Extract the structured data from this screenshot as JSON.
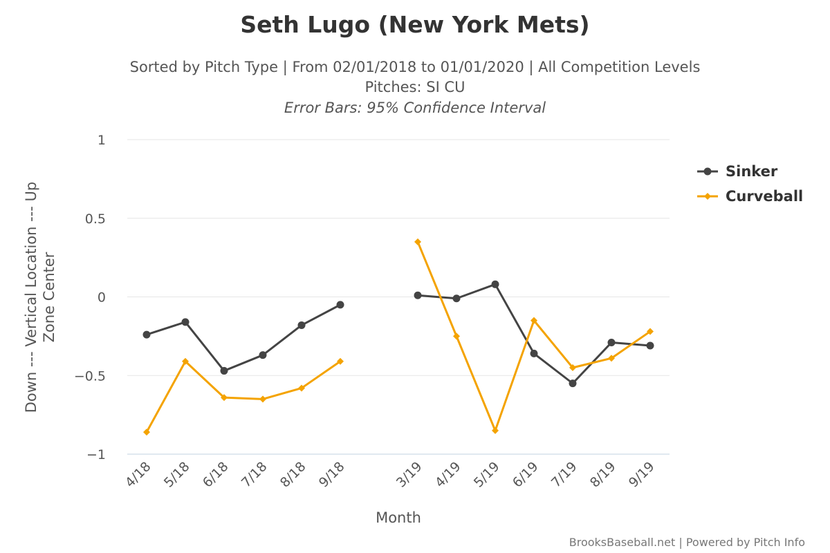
{
  "chart_data": {
    "type": "line",
    "title": "Seth Lugo (New York Mets)",
    "subtitle": "Sorted by Pitch Type | From 02/01/2018 to 01/01/2020 | All Competition Levels",
    "subtitle2": "Pitches: SI CU",
    "subtitle3": "Error Bars: 95% Confidence Interval",
    "xlabel": "Month",
    "ylabel_line1": "Down --- Vertical Location --- Up",
    "ylabel_line2": "Zone Center",
    "ylim": [
      -1,
      1
    ],
    "yticks": [
      1,
      0.5,
      0,
      -0.5,
      -1
    ],
    "ytick_labels": [
      "1",
      "0.5",
      "0",
      "−0.5",
      "−1"
    ],
    "categories": [
      "4/18",
      "5/18",
      "6/18",
      "7/18",
      "8/18",
      "9/18",
      "",
      "3/19",
      "4/19",
      "5/19",
      "6/19",
      "7/19",
      "8/19",
      "9/19"
    ],
    "legend_position": "right",
    "grid": true,
    "series": [
      {
        "name": "Sinker",
        "color": "#444444",
        "marker": "circle",
        "values": [
          -0.24,
          -0.16,
          -0.47,
          -0.37,
          -0.18,
          -0.05,
          null,
          0.01,
          -0.01,
          0.08,
          -0.36,
          -0.55,
          -0.29,
          -0.31
        ]
      },
      {
        "name": "Curveball",
        "color": "#f4a300",
        "marker": "diamond",
        "values": [
          -0.86,
          -0.41,
          -0.64,
          -0.65,
          -0.58,
          -0.41,
          null,
          0.35,
          -0.25,
          -0.85,
          -0.15,
          -0.45,
          -0.39,
          -0.22
        ]
      }
    ],
    "credits": "BrooksBaseball.net | Powered by Pitch Info"
  }
}
